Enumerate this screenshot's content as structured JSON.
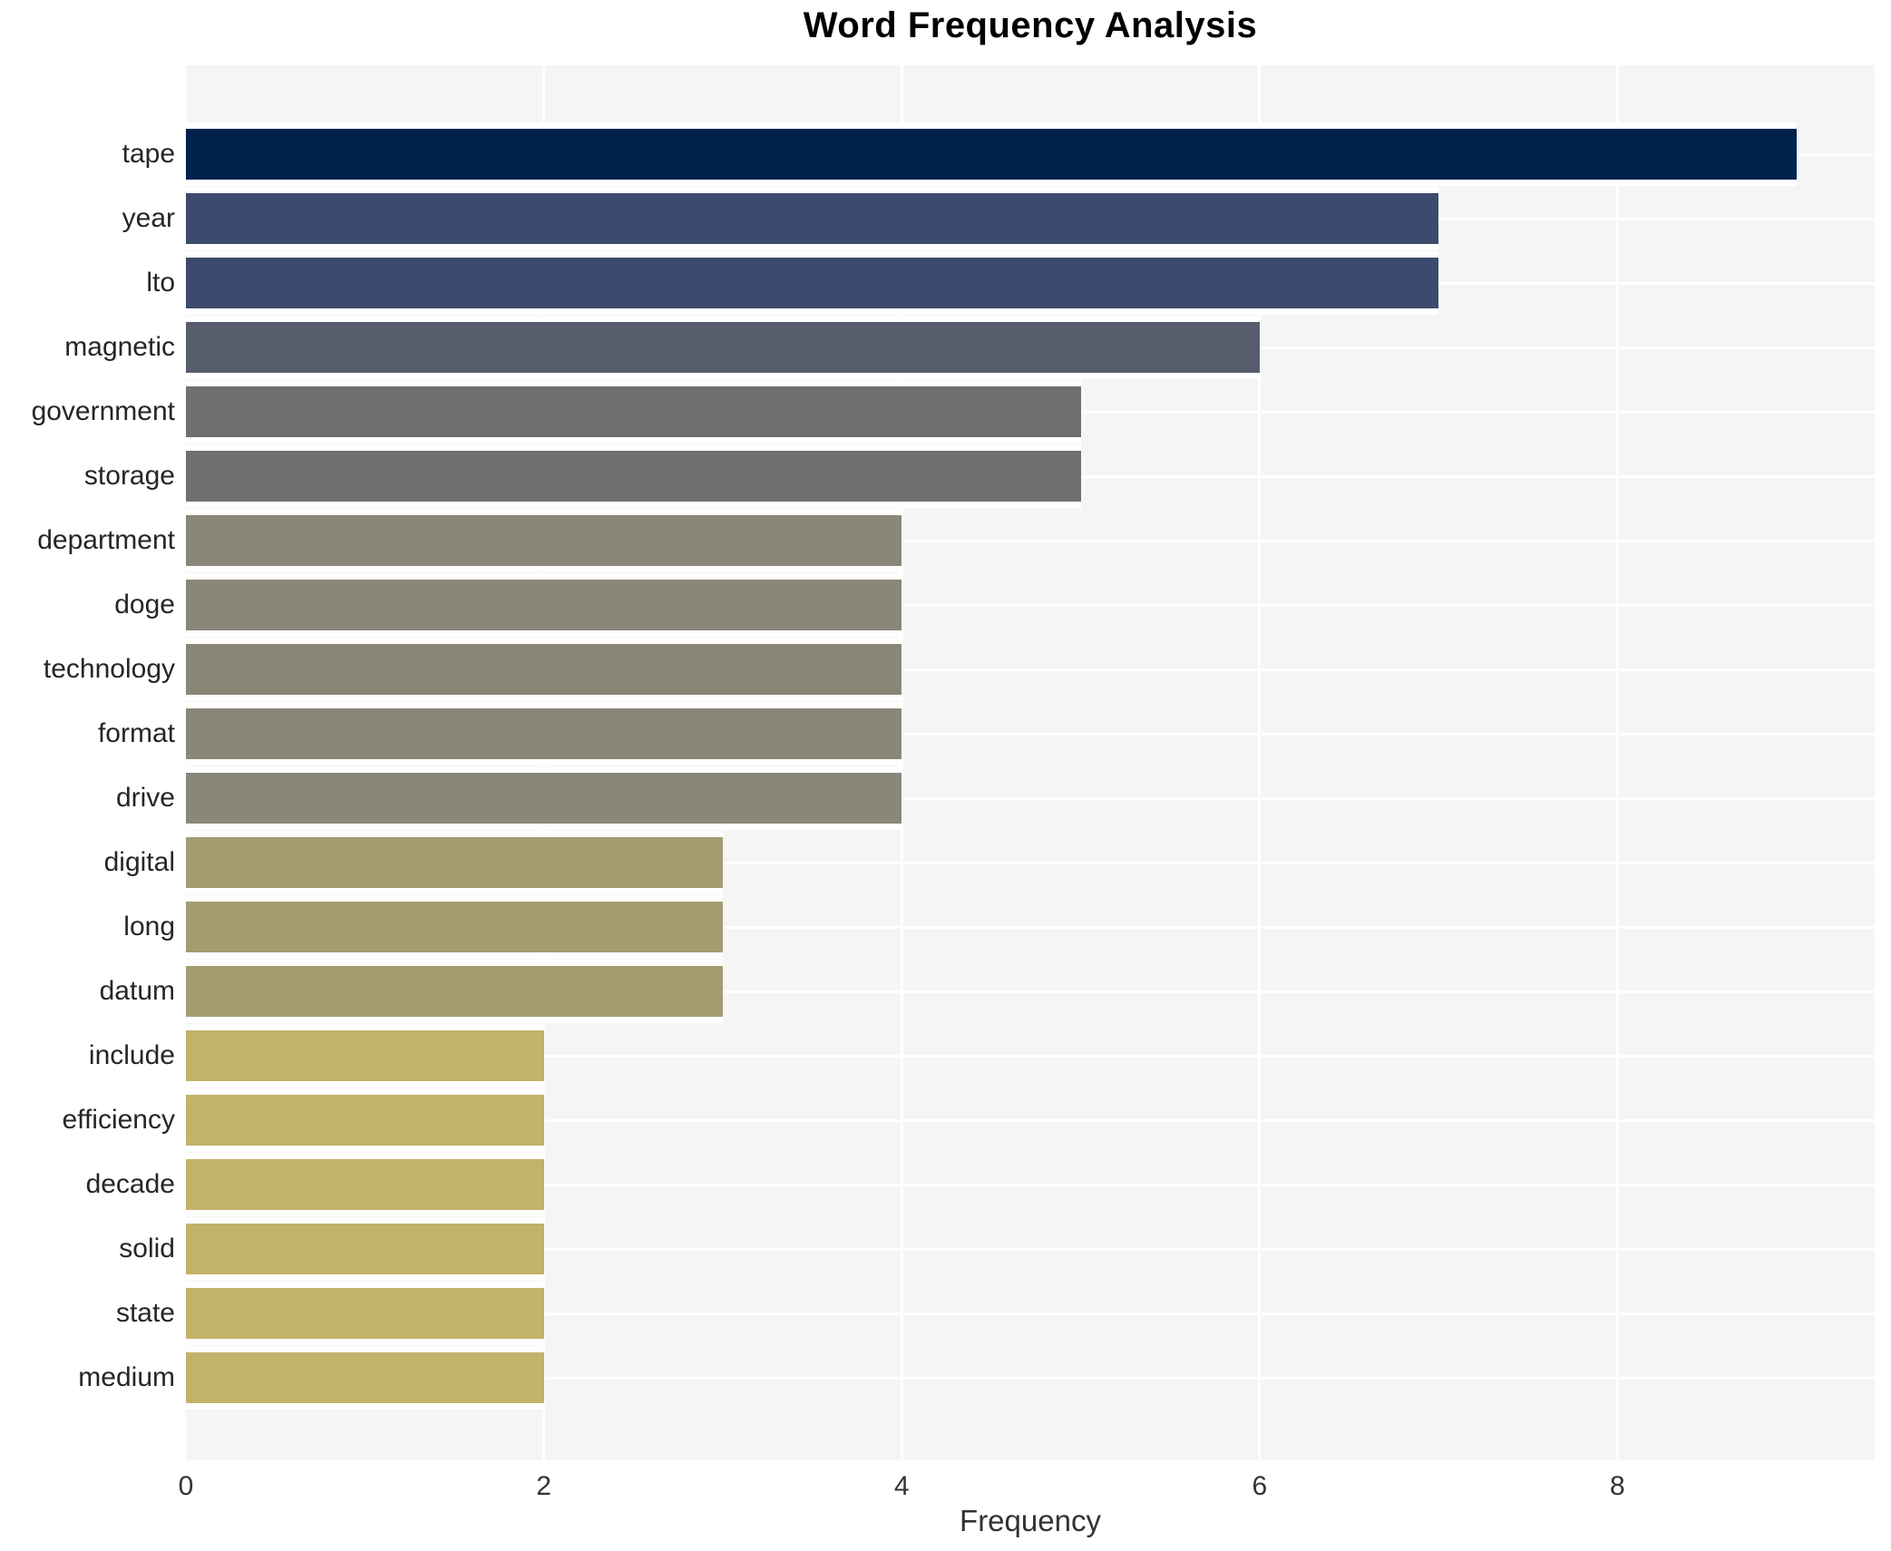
{
  "chart_data": {
    "type": "bar",
    "orientation": "horizontal",
    "title": "Word Frequency Analysis",
    "xlabel": "Frequency",
    "ylabel": "",
    "categories": [
      "tape",
      "year",
      "lto",
      "magnetic",
      "government",
      "storage",
      "department",
      "doge",
      "technology",
      "format",
      "drive",
      "digital",
      "long",
      "datum",
      "include",
      "efficiency",
      "decade",
      "solid",
      "state",
      "medium"
    ],
    "values": [
      9,
      7,
      7,
      6,
      5,
      5,
      4,
      4,
      4,
      4,
      4,
      3,
      3,
      3,
      2,
      2,
      2,
      2,
      2,
      2
    ],
    "bar_colors": [
      "#02224e",
      "#3c4a6d",
      "#3c4a6d",
      "#575d6d",
      "#6f6f6f",
      "#6f6f6f",
      "#8a8779",
      "#8a8779",
      "#8a8779",
      "#8a8779",
      "#8a8779",
      "#a49b6f",
      "#a49b6f",
      "#a49b6f",
      "#c3b269",
      "#c3b269",
      "#c3b269",
      "#c3b269",
      "#c3b269",
      "#c3b269"
    ],
    "xticks": [
      0,
      2,
      4,
      6,
      8
    ],
    "xlim": [
      0,
      9.44
    ],
    "grid": "white vertical gridlines at ticks 2,4,6,8 and white horizontal line at each bar center, drawn under bars",
    "legend": null,
    "panel_bg": "#f5f5f6",
    "gridline_color": "#ffffff",
    "title_color": "#000000",
    "label_color": "#262626",
    "tick_color": "#333333"
  }
}
